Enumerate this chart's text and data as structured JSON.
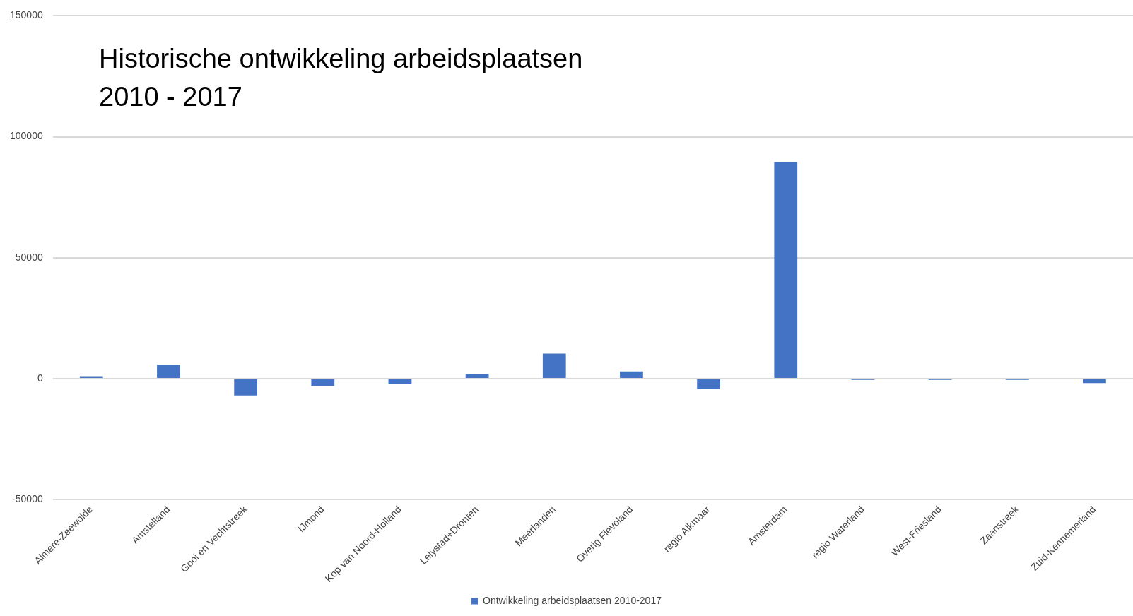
{
  "chart_data": {
    "type": "bar",
    "title": "Historische ontwikkeling arbeidsplaatsen",
    "subtitle": "2010 - 2017",
    "categories": [
      "Almere-Zeewolde",
      "Amstelland",
      "Gooi en Vechtstreek",
      "IJmond",
      "Kop van Noord-Holland",
      "Lelystad+Dronten",
      "Meerlanden",
      "Overig Flevoland",
      "regio Alkmaar",
      "Amsterdam",
      "regio Waterland",
      "West-Friesland",
      "Zaanstreek",
      "Zuid-Kennemerland"
    ],
    "series": [
      {
        "name": "Ontwikkeling arbeidsplaatsen 2010-2017",
        "color": "#4472c4",
        "values": [
          1000,
          5800,
          -6900,
          -3000,
          -2300,
          2000,
          10400,
          3000,
          -4300,
          89500,
          -500,
          -500,
          -500,
          -1800
        ]
      }
    ],
    "ylim": [
      -50000,
      150000
    ],
    "yticks": [
      -50000,
      0,
      50000,
      100000,
      150000
    ],
    "grid": "y",
    "legend": "bottom"
  }
}
